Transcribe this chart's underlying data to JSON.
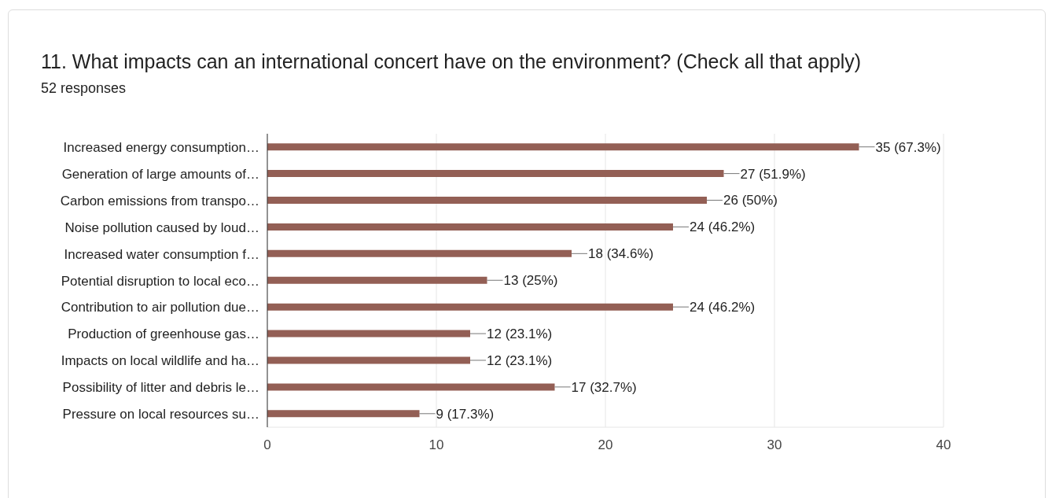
{
  "chart_data": {
    "type": "bar",
    "orientation": "horizontal",
    "title": "11. What impacts can an international concert have on the environment? (Check all that apply)",
    "subtitle": "52 responses",
    "categories": [
      "Increased energy consumption…",
      "Generation of large amounts of…",
      "Carbon emissions from transpo…",
      "Noise pollution caused by loud…",
      "Increased water consumption f…",
      "Potential disruption to local eco…",
      "Contribution to air pollution due…",
      "Production of greenhouse gas…",
      "Impacts on local wildlife and ha…",
      "Possibility of litter and debris le…",
      "Pressure on local resources su…"
    ],
    "values": [
      35,
      27,
      26,
      24,
      18,
      13,
      24,
      12,
      12,
      17,
      9
    ],
    "value_labels": [
      "35 (67.3%)",
      "27 (51.9%)",
      "26 (50%)",
      "24 (46.2%)",
      "18 (34.6%)",
      "13 (25%)",
      "24 (46.2%)",
      "12 (23.1%)",
      "12 (23.1%)",
      "17 (32.7%)",
      "9 (17.3%)"
    ],
    "color": "#935f55",
    "xlim": [
      0,
      40
    ],
    "xticks": [
      0,
      10,
      20,
      30,
      40
    ],
    "grid": "x",
    "legend": false
  }
}
